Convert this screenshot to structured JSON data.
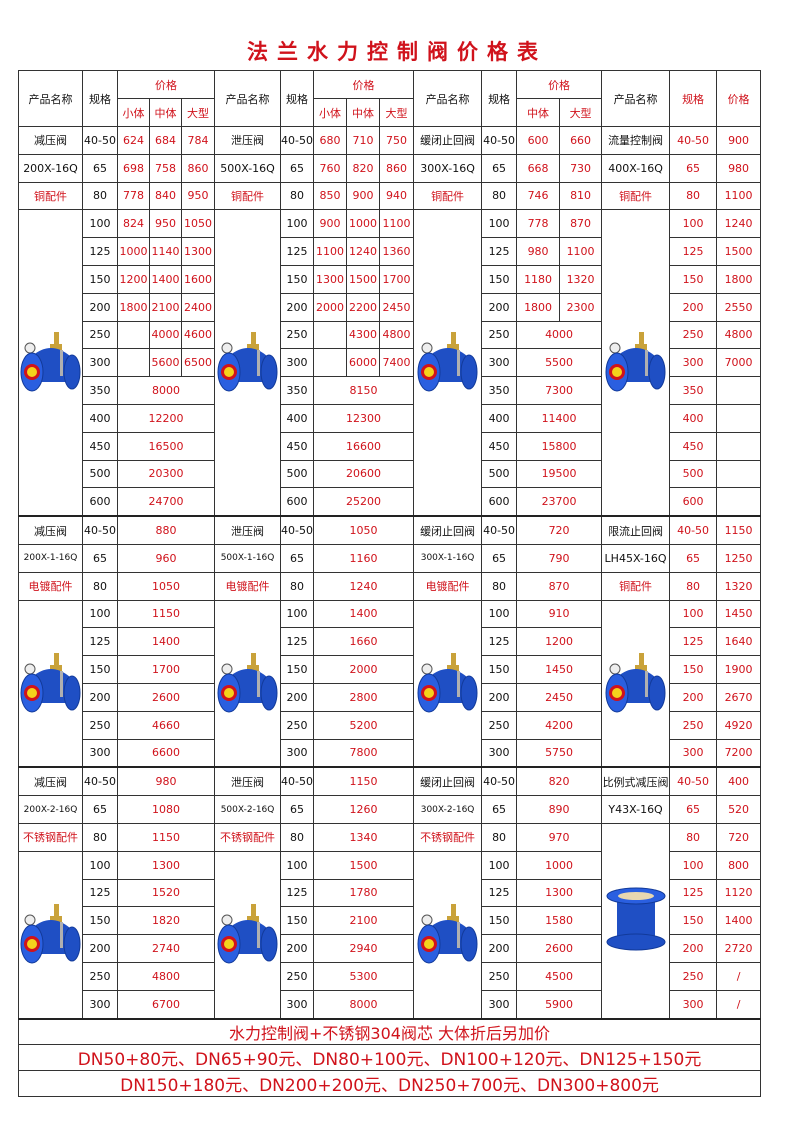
{
  "title": "法兰水力控制阀价格表",
  "header": {
    "name": "产品名称",
    "spec": "规格",
    "price": "价格",
    "sub": [
      [
        "小体",
        "中体",
        "大型"
      ],
      [
        "小体",
        "中体",
        "大型"
      ],
      [
        "中体",
        "大型"
      ],
      []
    ]
  },
  "colors": {
    "accent": "#d0121b",
    "valve_blue": "#1f4fc4"
  },
  "blocks": [
    {
      "products": [
        {
          "name": "减压阀",
          "model": "200X-16Q",
          "fitting": "铜配件",
          "icon": "valve-icon",
          "rows": [
            [
              "40-50",
              "624",
              "684",
              "784"
            ],
            [
              "65",
              "698",
              "758",
              "860"
            ],
            [
              "80",
              "778",
              "840",
              "950"
            ],
            [
              "100",
              "824",
              "950",
              "1050"
            ],
            [
              "125",
              "1000",
              "1140",
              "1300"
            ],
            [
              "150",
              "1200",
              "1400",
              "1600"
            ],
            [
              "200",
              "1800",
              "2100",
              "2400"
            ],
            [
              "250",
              "",
              "4000",
              "4600"
            ],
            [
              "300",
              "",
              "5600",
              "6500"
            ],
            [
              "350",
              "8000"
            ],
            [
              "400",
              "12200"
            ],
            [
              "450",
              "16500"
            ],
            [
              "500",
              "20300"
            ],
            [
              "600",
              "24700"
            ]
          ]
        },
        {
          "name": "泄压阀",
          "model": "500X-16Q",
          "fitting": "铜配件",
          "icon": "valve-icon",
          "rows": [
            [
              "40-50",
              "680",
              "710",
              "750"
            ],
            [
              "65",
              "760",
              "820",
              "860"
            ],
            [
              "80",
              "850",
              "900",
              "940"
            ],
            [
              "100",
              "900",
              "1000",
              "1100"
            ],
            [
              "125",
              "1100",
              "1240",
              "1360"
            ],
            [
              "150",
              "1300",
              "1500",
              "1700"
            ],
            [
              "200",
              "2000",
              "2200",
              "2450"
            ],
            [
              "250",
              "",
              "4300",
              "4800"
            ],
            [
              "300",
              "",
              "6000",
              "7400"
            ],
            [
              "350",
              "8150"
            ],
            [
              "400",
              "12300"
            ],
            [
              "450",
              "16600"
            ],
            [
              "500",
              "20600"
            ],
            [
              "600",
              "25200"
            ]
          ]
        },
        {
          "name": "缓闭止回阀",
          "model": "300X-16Q",
          "fitting": "铜配件",
          "icon": "valve-icon",
          "rows": [
            [
              "40-50",
              "600",
              "660"
            ],
            [
              "65",
              "668",
              "730"
            ],
            [
              "80",
              "746",
              "810"
            ],
            [
              "100",
              "778",
              "870"
            ],
            [
              "125",
              "980",
              "1100"
            ],
            [
              "150",
              "1180",
              "1320"
            ],
            [
              "200",
              "1800",
              "2300"
            ],
            [
              "250",
              "4000"
            ],
            [
              "300",
              "5500"
            ],
            [
              "350",
              "7300"
            ],
            [
              "400",
              "11400"
            ],
            [
              "450",
              "15800"
            ],
            [
              "500",
              "19500"
            ],
            [
              "600",
              "23700"
            ]
          ]
        },
        {
          "name": "流量控制阀",
          "model": "400X-16Q",
          "fitting": "铜配件",
          "icon": "valve-icon",
          "rows": [
            [
              "40-50",
              "900"
            ],
            [
              "65",
              "980"
            ],
            [
              "80",
              "1100"
            ],
            [
              "100",
              "1240"
            ],
            [
              "125",
              "1500"
            ],
            [
              "150",
              "1800"
            ],
            [
              "200",
              "2550"
            ],
            [
              "250",
              "4800"
            ],
            [
              "300",
              "7000"
            ],
            [
              "350",
              ""
            ],
            [
              "400",
              ""
            ],
            [
              "450",
              ""
            ],
            [
              "500",
              ""
            ],
            [
              "600",
              ""
            ]
          ]
        }
      ]
    },
    {
      "products": [
        {
          "name": "减压阀",
          "model": "200X-1-16Q",
          "fitting": "电镀配件",
          "icon": "valve-icon",
          "rows": [
            [
              "40-50",
              "880"
            ],
            [
              "65",
              "960"
            ],
            [
              "80",
              "1050"
            ],
            [
              "100",
              "1150"
            ],
            [
              "125",
              "1400"
            ],
            [
              "150",
              "1700"
            ],
            [
              "200",
              "2600"
            ],
            [
              "250",
              "4660"
            ],
            [
              "300",
              "6600"
            ]
          ]
        },
        {
          "name": "泄压阀",
          "model": "500X-1-16Q",
          "fitting": "电镀配件",
          "icon": "valve-icon",
          "rows": [
            [
              "40-50",
              "1050"
            ],
            [
              "65",
              "1160"
            ],
            [
              "80",
              "1240"
            ],
            [
              "100",
              "1400"
            ],
            [
              "125",
              "1660"
            ],
            [
              "150",
              "2000"
            ],
            [
              "200",
              "2800"
            ],
            [
              "250",
              "5200"
            ],
            [
              "300",
              "7800"
            ]
          ]
        },
        {
          "name": "缓闭止回阀",
          "model": "300X-1-16Q",
          "fitting": "电镀配件",
          "icon": "valve-icon",
          "rows": [
            [
              "40-50",
              "720"
            ],
            [
              "65",
              "790"
            ],
            [
              "80",
              "870"
            ],
            [
              "100",
              "910"
            ],
            [
              "125",
              "1200"
            ],
            [
              "150",
              "1450"
            ],
            [
              "200",
              "2450"
            ],
            [
              "250",
              "4200"
            ],
            [
              "300",
              "5750"
            ]
          ]
        },
        {
          "name": "限流止回阀",
          "model": "LH45X-16Q",
          "fitting": "铜配件",
          "icon": "valve-icon",
          "rows": [
            [
              "40-50",
              "1150"
            ],
            [
              "65",
              "1250"
            ],
            [
              "80",
              "1320"
            ],
            [
              "100",
              "1450"
            ],
            [
              "125",
              "1640"
            ],
            [
              "150",
              "1900"
            ],
            [
              "200",
              "2670"
            ],
            [
              "250",
              "4920"
            ],
            [
              "300",
              "7200"
            ]
          ]
        }
      ]
    },
    {
      "products": [
        {
          "name": "减压阀",
          "model": "200X-2-16Q",
          "fitting": "不锈钢配件",
          "icon": "valve-icon",
          "rows": [
            [
              "40-50",
              "980"
            ],
            [
              "65",
              "1080"
            ],
            [
              "80",
              "1150"
            ],
            [
              "100",
              "1300"
            ],
            [
              "125",
              "1520"
            ],
            [
              "150",
              "1820"
            ],
            [
              "200",
              "2740"
            ],
            [
              "250",
              "4800"
            ],
            [
              "300",
              "6700"
            ]
          ]
        },
        {
          "name": "泄压阀",
          "model": "500X-2-16Q",
          "fitting": "不锈钢配件",
          "icon": "valve-icon",
          "rows": [
            [
              "40-50",
              "1150"
            ],
            [
              "65",
              "1260"
            ],
            [
              "80",
              "1340"
            ],
            [
              "100",
              "1500"
            ],
            [
              "125",
              "1780"
            ],
            [
              "150",
              "2100"
            ],
            [
              "200",
              "2940"
            ],
            [
              "250",
              "5300"
            ],
            [
              "300",
              "8000"
            ]
          ]
        },
        {
          "name": "缓闭止回阀",
          "model": "300X-2-16Q",
          "fitting": "不锈钢配件",
          "icon": "valve-icon",
          "rows": [
            [
              "40-50",
              "820"
            ],
            [
              "65",
              "890"
            ],
            [
              "80",
              "970"
            ],
            [
              "100",
              "1000"
            ],
            [
              "125",
              "1300"
            ],
            [
              "150",
              "1580"
            ],
            [
              "200",
              "2600"
            ],
            [
              "250",
              "4500"
            ],
            [
              "300",
              "5900"
            ]
          ]
        },
        {
          "name": "比例式减压阀",
          "model": "Y43X-16Q",
          "fitting": null,
          "icon": "flange-pipe-icon",
          "rows": [
            [
              "40-50",
              "400"
            ],
            [
              "65",
              "520"
            ],
            [
              "80",
              "720"
            ],
            [
              "100",
              "800"
            ],
            [
              "125",
              "1120"
            ],
            [
              "150",
              "1400"
            ],
            [
              "200",
              "2720"
            ],
            [
              "250",
              "/"
            ],
            [
              "300",
              "/"
            ]
          ]
        }
      ]
    }
  ],
  "footer": [
    "水力控制阀+不锈钢304阀芯 大体折后另加价",
    "DN50+80元、DN65+90元、DN80+100元、DN100+120元、DN125+150元",
    "DN150+180元、DN200+200元、DN250+700元、DN300+800元"
  ]
}
